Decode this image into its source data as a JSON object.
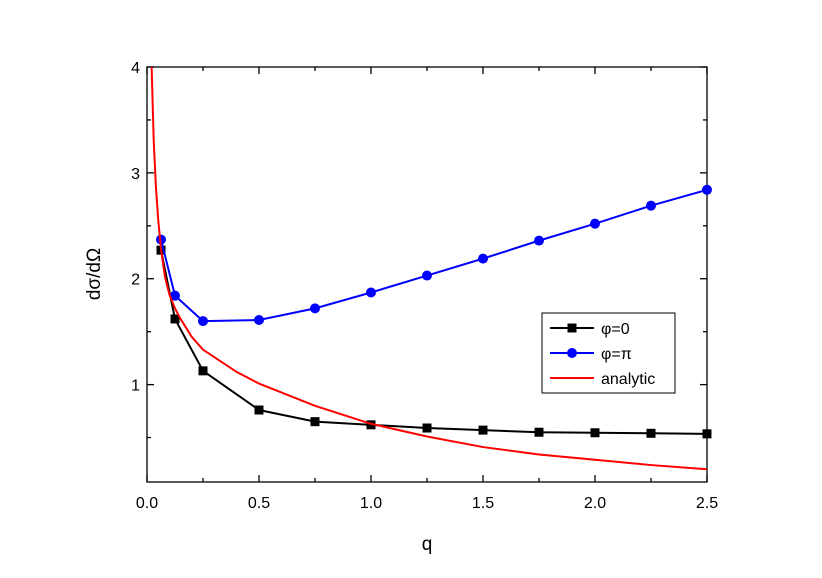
{
  "chart_data": {
    "type": "line",
    "xlabel": "q",
    "ylabel": "dσ/dΩ",
    "xlim": [
      0,
      2.5
    ],
    "ylim": [
      0.08,
      4
    ],
    "xticks": [
      0.0,
      0.5,
      1.0,
      1.5,
      2.0,
      2.5
    ],
    "xtick_labels": [
      "0.0",
      "0.5",
      "1.0",
      "1.5",
      "2.0",
      "2.5"
    ],
    "yticks": [
      1,
      2,
      3,
      4
    ],
    "ytick_labels": [
      "1",
      "2",
      "3",
      "4"
    ],
    "grid": false,
    "legend_position": "right",
    "series": [
      {
        "name": "φ=0",
        "color": "#000000",
        "marker": "square",
        "x": [
          0.0625,
          0.125,
          0.25,
          0.5,
          0.75,
          1.0,
          1.25,
          1.5,
          1.75,
          2.0,
          2.25,
          2.5
        ],
        "y": [
          2.27,
          1.62,
          1.13,
          0.76,
          0.65,
          0.62,
          0.59,
          0.57,
          0.55,
          0.545,
          0.54,
          0.535
        ]
      },
      {
        "name": "φ=π",
        "color": "#0000ff",
        "marker": "circle",
        "x": [
          0.0625,
          0.125,
          0.25,
          0.5,
          0.75,
          1.0,
          1.25,
          1.5,
          1.75,
          2.0,
          2.25,
          2.5
        ],
        "y": [
          2.37,
          1.84,
          1.6,
          1.61,
          1.72,
          1.87,
          2.03,
          2.19,
          2.36,
          2.52,
          2.69,
          2.84
        ]
      },
      {
        "name": "analytic",
        "color": "#ff0000",
        "marker": "none",
        "x": [
          0.02,
          0.03,
          0.04,
          0.05,
          0.0625,
          0.08,
          0.1,
          0.125,
          0.15,
          0.2,
          0.25,
          0.3,
          0.4,
          0.5,
          0.75,
          1.0,
          1.25,
          1.5,
          1.75,
          2.0,
          2.25,
          2.5
        ],
        "y": [
          4.05,
          3.3,
          2.86,
          2.56,
          2.28,
          2.02,
          1.85,
          1.72,
          1.62,
          1.45,
          1.33,
          1.26,
          1.12,
          1.01,
          0.8,
          0.63,
          0.51,
          0.41,
          0.34,
          0.29,
          0.24,
          0.2
        ]
      }
    ]
  }
}
